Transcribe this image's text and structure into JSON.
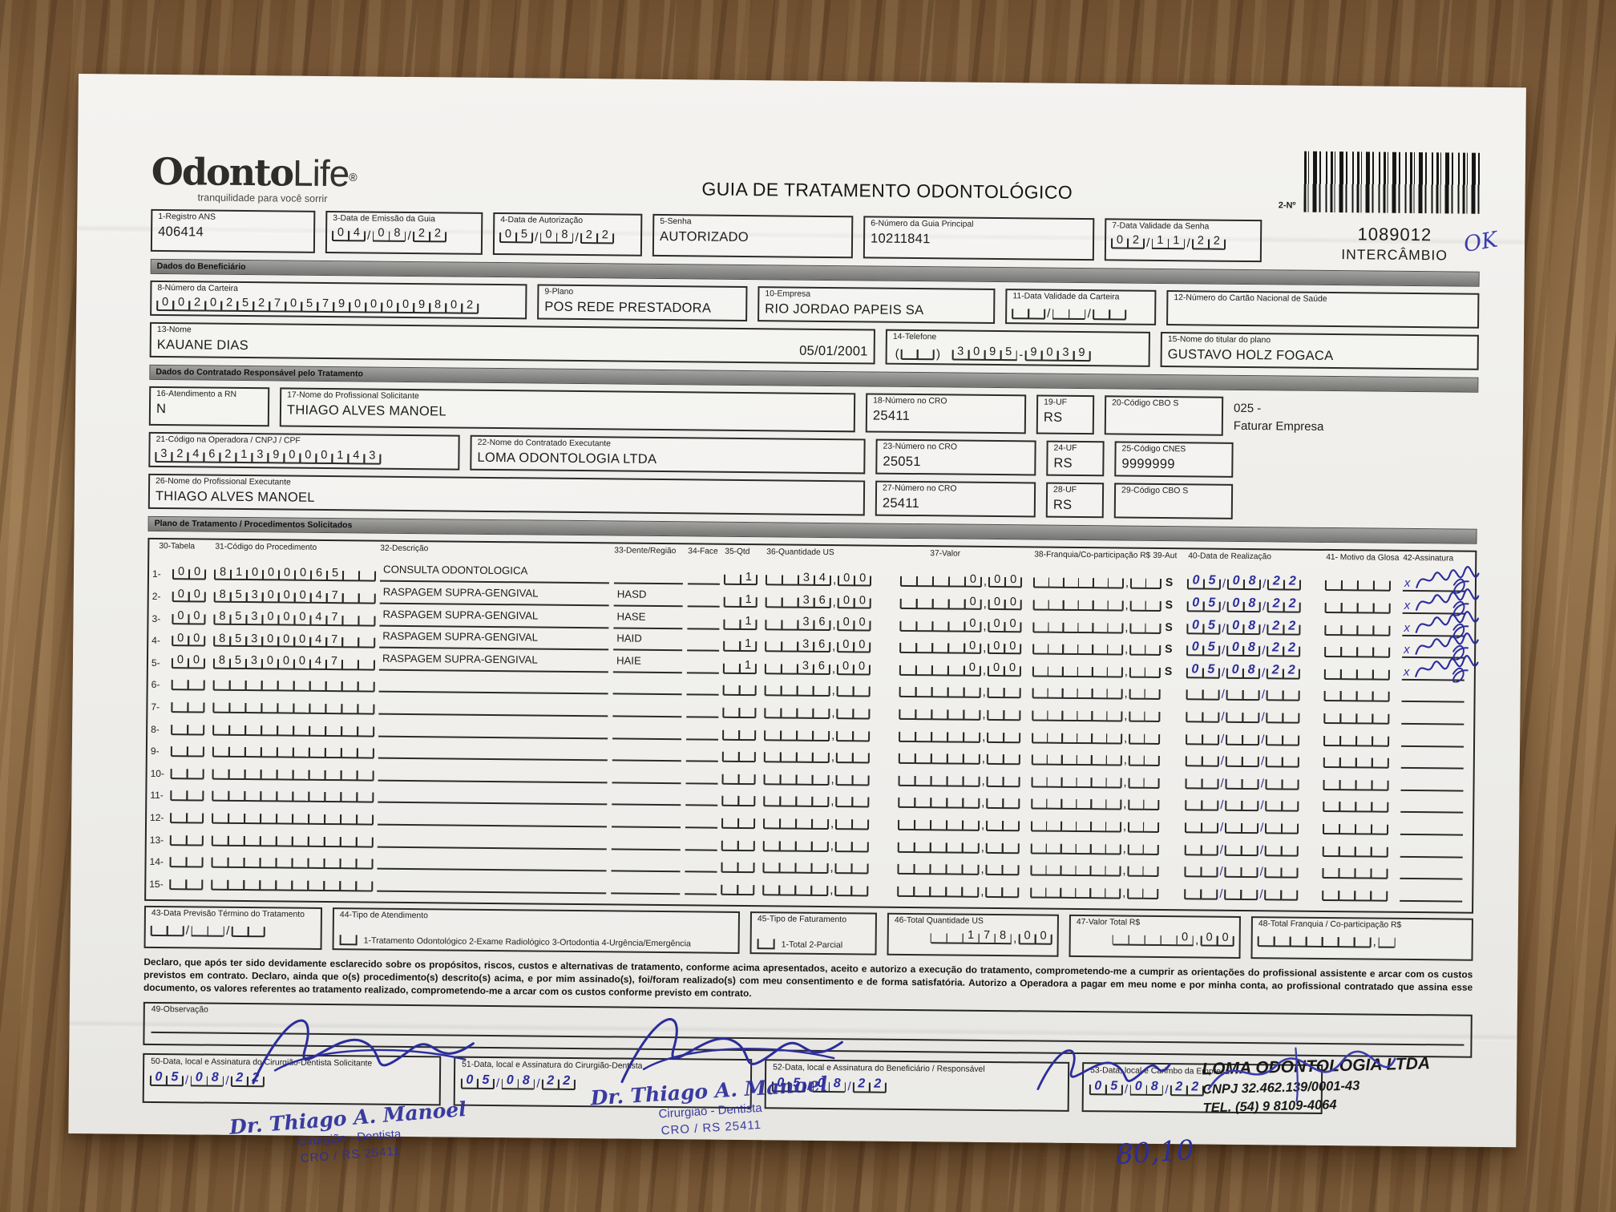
{
  "header": {
    "logo_part1": "Odonto",
    "logo_part2": "Life",
    "logo_reg": "®",
    "tagline": "tranquilidade para você sorrir",
    "title": "GUIA DE TRATAMENTO ODONTOLÓGICO",
    "number_label": "2-Nº",
    "guide_number": "1089012",
    "guide_type": "INTERCÂMBIO",
    "handwritten_ok": "OK"
  },
  "fields": {
    "f1": {
      "label": "1-Registro ANS",
      "value": "406414"
    },
    "f3": {
      "label": "3-Data de Emissão da Guia",
      "digits": [
        "0",
        "4",
        "/",
        "0",
        "8",
        "/",
        "2",
        "2"
      ]
    },
    "f4": {
      "label": "4-Data de Autorização",
      "digits": [
        "0",
        "5",
        "/",
        "0",
        "8",
        "/",
        "2",
        "2"
      ]
    },
    "f5": {
      "label": "5-Senha",
      "value": "AUTORIZADO"
    },
    "f6": {
      "label": "6-Número da Guia Principal",
      "value": "10211841"
    },
    "f7": {
      "label": "7-Data Validade da Senha",
      "digits": [
        "0",
        "2",
        "/",
        "1",
        "1",
        "/",
        "2",
        "2"
      ]
    },
    "f8": {
      "label": "8-Número da Carteira",
      "digits": [
        "0",
        "0",
        "2",
        "0",
        "2",
        "5",
        "2",
        "7",
        "0",
        "5",
        "7",
        "9",
        "0",
        "0",
        "0",
        "0",
        "9",
        "8",
        "0",
        "2"
      ]
    },
    "f9": {
      "label": "9-Plano",
      "value": "POS REDE PRESTADORA"
    },
    "f10": {
      "label": "10-Empresa",
      "value": "RIO JORDAO PAPEIS SA"
    },
    "f11": {
      "label": "11-Data Validade da Carteira",
      "digits": [
        "",
        "",
        "/",
        "",
        "",
        "/",
        "",
        ""
      ]
    },
    "f12": {
      "label": "12-Número do Cartão Nacional de Saúde",
      "value": ""
    },
    "f13": {
      "label": "13-Nome",
      "value": "KAUANE DIAS",
      "value2": "05/01/2001"
    },
    "f14": {
      "label": "14-Telefone",
      "digits": [
        "(",
        "",
        "",
        ")",
        " ",
        "3",
        "0",
        "9",
        "5",
        "-",
        "9",
        "0",
        "3",
        "9"
      ]
    },
    "f15": {
      "label": "15-Nome do titular do plano",
      "value": "GUSTAVO HOLZ FOGACA"
    },
    "f16": {
      "label": "16-Atendimento a RN",
      "value": "N"
    },
    "f17": {
      "label": "17-Nome do Profissional Solicitante",
      "value": "THIAGO ALVES MANOEL"
    },
    "f18": {
      "label": "18-Número no CRO",
      "value": "25411"
    },
    "f19": {
      "label": "19-UF",
      "value": "RS"
    },
    "f20": {
      "label": "20-Código CBO S",
      "value": ""
    },
    "note_line1": "025 -",
    "note_line2": "Faturar Empresa",
    "f21": {
      "label": "21-Código na Operadora / CNPJ / CPF",
      "digits": [
        "3",
        "2",
        "4",
        "6",
        "2",
        "1",
        "3",
        "9",
        "0",
        "0",
        "0",
        "1",
        "4",
        "3"
      ]
    },
    "f22": {
      "label": "22-Nome do Contratado Executante",
      "value": "LOMA ODONTOLOGIA LTDA"
    },
    "f23": {
      "label": "23-Número no CRO",
      "value": "25051"
    },
    "f24": {
      "label": "24-UF",
      "value": "RS"
    },
    "f25": {
      "label": "25-Código CNES",
      "value": "9999999"
    },
    "f26": {
      "label": "26-Nome do Profissional Executante",
      "value": "THIAGO ALVES MANOEL"
    },
    "f27": {
      "label": "27-Número no CRO",
      "value": "25411"
    },
    "f28": {
      "label": "28-UF",
      "value": "RS"
    },
    "f29": {
      "label": "29-Código CBO S",
      "value": ""
    },
    "f43": {
      "label": "43-Data Previsão Término do Tratamento",
      "digits": [
        "",
        "",
        "/",
        "",
        "",
        "/",
        "",
        ""
      ]
    },
    "f44": {
      "label": "44-Tipo de Atendimento",
      "options": "1-Tratamento Odontológico  2-Exame Radiológico  3-Ortodontia  4-Urgência/Emergência"
    },
    "f45": {
      "label": "45-Tipo de Faturamento",
      "options": "1-Total  2-Parcial"
    },
    "f46": {
      "label": "46-Total Quantidade US",
      "digits": [
        "",
        "",
        "1",
        "7",
        "8",
        ",",
        "0",
        "0"
      ]
    },
    "f47": {
      "label": "47-Valor Total R$",
      "digits": [
        "",
        "",
        "",
        "",
        "0",
        ",",
        "0",
        "0"
      ]
    },
    "f48": {
      "label": "48-Total Franquia / Co-participação R$",
      "digits": [
        "",
        "",
        "",
        "",
        "",
        "",
        "",
        ",",
        ""
      ]
    },
    "f49": {
      "label": "49-Observação"
    },
    "f50": {
      "label": "50-Data, local e Assinatura do Cirurgião-Dentista Solicitante",
      "digits": [
        "0",
        "5",
        "/",
        "0",
        "8",
        "/",
        "2",
        "2"
      ]
    },
    "f51": {
      "label": "51-Data, local e Assinatura do Cirurgião-Dentista",
      "digits": [
        "0",
        "5",
        "/",
        "0",
        "8",
        "/",
        "2",
        "2"
      ]
    },
    "f52": {
      "label": "52-Data, local e Assinatura do Beneficiário / Responsável",
      "digits": [
        "0",
        "5",
        "/",
        "0",
        "8",
        "/",
        "2",
        "2"
      ]
    },
    "f53": {
      "label": "53-Data, local e Carimbo da Empresa",
      "digits": [
        "0",
        "5",
        "/",
        "0",
        "8",
        "/",
        "2",
        "2"
      ]
    }
  },
  "sections": {
    "beneficiario": "Dados do Beneficiário",
    "contratado": "Dados do Contratado Responsável pelo Tratamento",
    "plano": "Plano de Tratamento / Procedimentos Solicitados"
  },
  "procedures": {
    "columns": [
      "30-Tabela",
      "31-Código do Procedimento",
      "32-Descrição",
      "33-Dente/Região",
      "34-Face",
      "35-Qtd",
      "36-Quantidade US",
      "37-Valor",
      "38-Franquia/Co-participação R$",
      "39-Aut",
      "40-Data de Realização",
      "41- Motivo da Glosa",
      "42-Assinatura"
    ],
    "sign_mark": "x",
    "rows": [
      {
        "num": "1-",
        "tabela": [
          "0",
          "0"
        ],
        "codigo": [
          "8",
          "1",
          "0",
          "0",
          "0",
          "0",
          "6",
          "5",
          "",
          ""
        ],
        "descricao": "CONSULTA ODONTOLOGICA",
        "dente": "",
        "face": "",
        "qtd": [
          "",
          "1"
        ],
        "qus": [
          "",
          "",
          "3",
          "4",
          ",",
          "0",
          "0"
        ],
        "valor": [
          "",
          "",
          "",
          "",
          "0",
          ",",
          "0",
          "0"
        ],
        "franquia": [
          "",
          "",
          "",
          "",
          "",
          "",
          ",",
          "",
          ""
        ],
        "aut": "S",
        "data": [
          "0",
          "5",
          "/",
          "0",
          "8",
          "/",
          "2",
          "2"
        ],
        "glosa": [
          "",
          "",
          "",
          ""
        ],
        "assinado": true
      },
      {
        "num": "2-",
        "tabela": [
          "0",
          "0"
        ],
        "codigo": [
          "8",
          "5",
          "3",
          "0",
          "0",
          "0",
          "4",
          "7",
          "",
          ""
        ],
        "descricao": "RASPAGEM SUPRA-GENGIVAL",
        "dente": "HASD",
        "face": "",
        "qtd": [
          "",
          "1"
        ],
        "qus": [
          "",
          "",
          "3",
          "6",
          ",",
          "0",
          "0"
        ],
        "valor": [
          "",
          "",
          "",
          "",
          "0",
          ",",
          "0",
          "0"
        ],
        "franquia": [
          "",
          "",
          "",
          "",
          "",
          "",
          ",",
          "",
          ""
        ],
        "aut": "S",
        "data": [
          "0",
          "5",
          "/",
          "0",
          "8",
          "/",
          "2",
          "2"
        ],
        "glosa": [
          "",
          "",
          "",
          ""
        ],
        "assinado": true
      },
      {
        "num": "3-",
        "tabela": [
          "0",
          "0"
        ],
        "codigo": [
          "8",
          "5",
          "3",
          "0",
          "0",
          "0",
          "4",
          "7",
          "",
          ""
        ],
        "descricao": "RASPAGEM SUPRA-GENGIVAL",
        "dente": "HASE",
        "face": "",
        "qtd": [
          "",
          "1"
        ],
        "qus": [
          "",
          "",
          "3",
          "6",
          ",",
          "0",
          "0"
        ],
        "valor": [
          "",
          "",
          "",
          "",
          "0",
          ",",
          "0",
          "0"
        ],
        "franquia": [
          "",
          "",
          "",
          "",
          "",
          "",
          ",",
          "",
          ""
        ],
        "aut": "S",
        "data": [
          "0",
          "5",
          "/",
          "0",
          "8",
          "/",
          "2",
          "2"
        ],
        "glosa": [
          "",
          "",
          "",
          ""
        ],
        "assinado": true
      },
      {
        "num": "4-",
        "tabela": [
          "0",
          "0"
        ],
        "codigo": [
          "8",
          "5",
          "3",
          "0",
          "0",
          "0",
          "4",
          "7",
          "",
          ""
        ],
        "descricao": "RASPAGEM SUPRA-GENGIVAL",
        "dente": "HAID",
        "face": "",
        "qtd": [
          "",
          "1"
        ],
        "qus": [
          "",
          "",
          "3",
          "6",
          ",",
          "0",
          "0"
        ],
        "valor": [
          "",
          "",
          "",
          "",
          "0",
          ",",
          "0",
          "0"
        ],
        "franquia": [
          "",
          "",
          "",
          "",
          "",
          "",
          ",",
          "",
          ""
        ],
        "aut": "S",
        "data": [
          "0",
          "5",
          "/",
          "0",
          "8",
          "/",
          "2",
          "2"
        ],
        "glosa": [
          "",
          "",
          "",
          ""
        ],
        "assinado": true
      },
      {
        "num": "5-",
        "tabela": [
          "0",
          "0"
        ],
        "codigo": [
          "8",
          "5",
          "3",
          "0",
          "0",
          "0",
          "4",
          "7",
          "",
          ""
        ],
        "descricao": "RASPAGEM SUPRA-GENGIVAL",
        "dente": "HAIE",
        "face": "",
        "qtd": [
          "",
          "1"
        ],
        "qus": [
          "",
          "",
          "3",
          "6",
          ",",
          "0",
          "0"
        ],
        "valor": [
          "",
          "",
          "",
          "",
          "0",
          ",",
          "0",
          "0"
        ],
        "franquia": [
          "",
          "",
          "",
          "",
          "",
          "",
          ",",
          "",
          ""
        ],
        "aut": "S",
        "data": [
          "0",
          "5",
          "/",
          "0",
          "8",
          "/",
          "2",
          "2"
        ],
        "glosa": [
          "",
          "",
          "",
          ""
        ],
        "assinado": true
      }
    ],
    "empty_row_numbers": [
      "6-",
      "7-",
      "8-",
      "9-",
      "10-",
      "11-",
      "12-",
      "13-",
      "14-",
      "15-"
    ]
  },
  "declaration": "Declaro, que após ter sido devidamente esclarecido sobre os propósitos, riscos, custos e alternativas de tratamento, conforme acima apresentados, aceito e autorizo a execução do tratamento, comprometendo-me a cumprir as orientações do profissional assistente e arcar com os custos previstos em contrato. Declaro, ainda que o(s) procedimento(s) descrito(s) acima, e por mim assinado(s), foi/foram realizado(s) com meu consentimento e de forma satisfatória. Autorizo a Operadora a pagar em meu nome e por minha conta, ao profissional contratado que assina esse documento, os valores referentes ao tratamento realizado, comprometendo-me a arcar com os custos conforme previsto em contrato.",
  "stamps": {
    "dentist": {
      "line1": "Dr. Thiago A. Manoel",
      "line2": "Cirurgião - Dentista",
      "line3": "CRO / RS 25411"
    },
    "company": {
      "line1": "LOMA ODONTOLOGIA LTDA",
      "line2": "CNPJ  32.462.139/0001-43",
      "line3": "TEL. (54) 9 8109-4064"
    }
  },
  "annotations": {
    "amount": "80,10"
  }
}
